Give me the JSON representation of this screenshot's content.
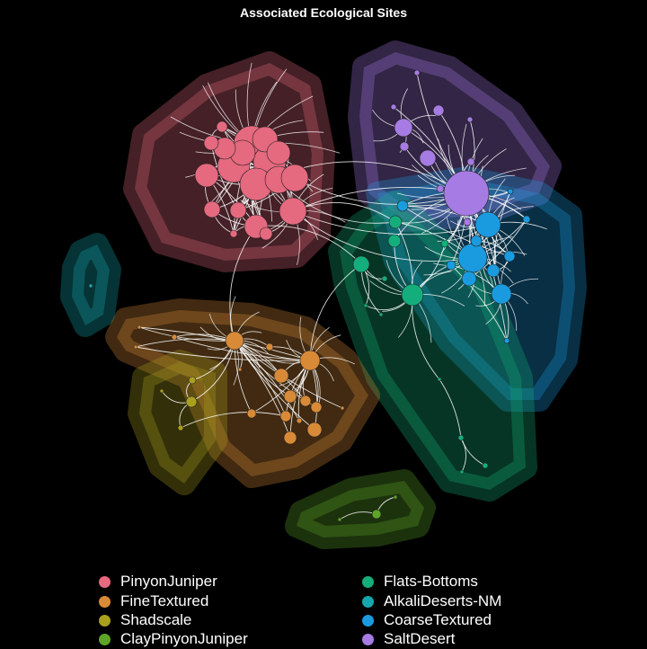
{
  "title": "Associated Ecological Sites",
  "groups": [
    {
      "name": "PinyonJuniper",
      "color": "#E5697F"
    },
    {
      "name": "FineTextured",
      "color": "#D88A37"
    },
    {
      "name": "Shadscale",
      "color": "#A8A01E"
    },
    {
      "name": "ClayPinyonJuniper",
      "color": "#5EA428"
    },
    {
      "name": "Flats-Bottoms",
      "color": "#14AE7C"
    },
    {
      "name": "AlkaliDeserts-NM",
      "color": "#14A8AE"
    },
    {
      "name": "CoarseTextured",
      "color": "#1A9BE0"
    },
    {
      "name": "SaltDesert",
      "color": "#A67BE3"
    }
  ],
  "colors": {
    "background": "#000000",
    "edge": "#ffffff",
    "node_border": "#222222"
  }
}
